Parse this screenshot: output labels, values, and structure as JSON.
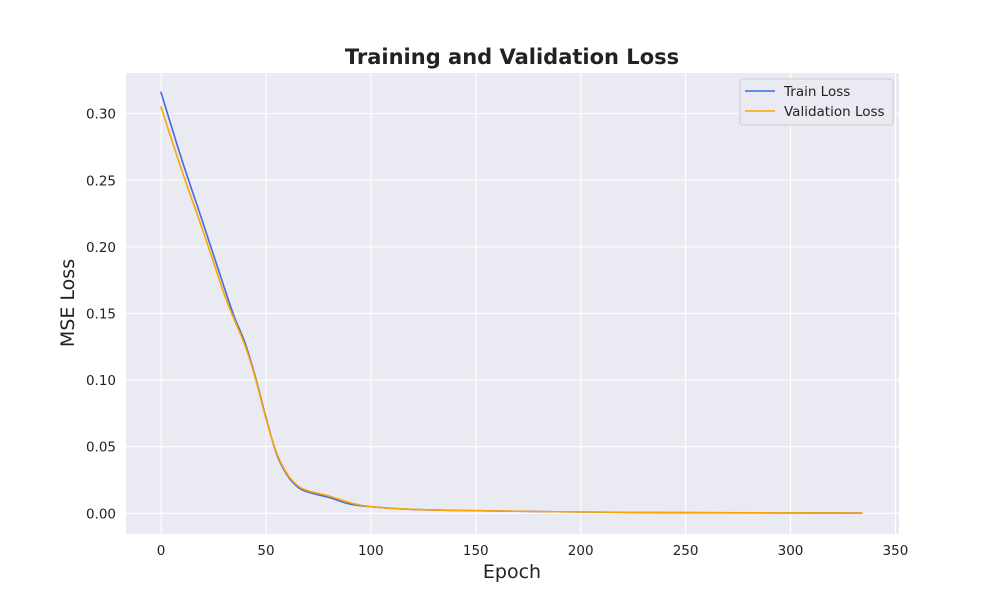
{
  "chart_data": {
    "type": "line",
    "title": "Training and Validation Loss",
    "xlabel": "Epoch",
    "ylabel": "MSE Loss",
    "xlim": [
      -16.7,
      351.7
    ],
    "ylim": [
      -0.0155,
      0.3305
    ],
    "xticks": [
      0,
      50,
      100,
      150,
      200,
      250,
      300,
      350
    ],
    "yticks": [
      0.0,
      0.05,
      0.1,
      0.15,
      0.2,
      0.25,
      0.3
    ],
    "xtick_labels": [
      "0",
      "50",
      "100",
      "150",
      "200",
      "250",
      "300",
      "350"
    ],
    "ytick_labels": [
      "0.00",
      "0.05",
      "0.10",
      "0.15",
      "0.20",
      "0.25",
      "0.30"
    ],
    "grid": true,
    "legend_position": "top-right",
    "x": [
      0,
      10,
      20,
      30,
      35,
      40,
      45,
      50,
      55,
      60,
      65,
      70,
      80,
      90,
      100,
      120,
      150,
      200,
      250,
      300,
      334
    ],
    "series": [
      {
        "name": "Train Loss",
        "color": "#4169e1",
        "values": [
          0.316,
          0.265,
          0.218,
          0.17,
          0.147,
          0.128,
          0.102,
          0.072,
          0.045,
          0.029,
          0.02,
          0.016,
          0.012,
          0.007,
          0.005,
          0.003,
          0.002,
          0.001,
          0.0005,
          0.0003,
          0.0002
        ]
      },
      {
        "name": "Validation Loss",
        "color": "#ffa500",
        "values": [
          0.305,
          0.257,
          0.212,
          0.165,
          0.145,
          0.126,
          0.101,
          0.071,
          0.046,
          0.03,
          0.021,
          0.017,
          0.013,
          0.008,
          0.005,
          0.003,
          0.002,
          0.001,
          0.0006,
          0.0003,
          0.0002
        ]
      }
    ]
  }
}
